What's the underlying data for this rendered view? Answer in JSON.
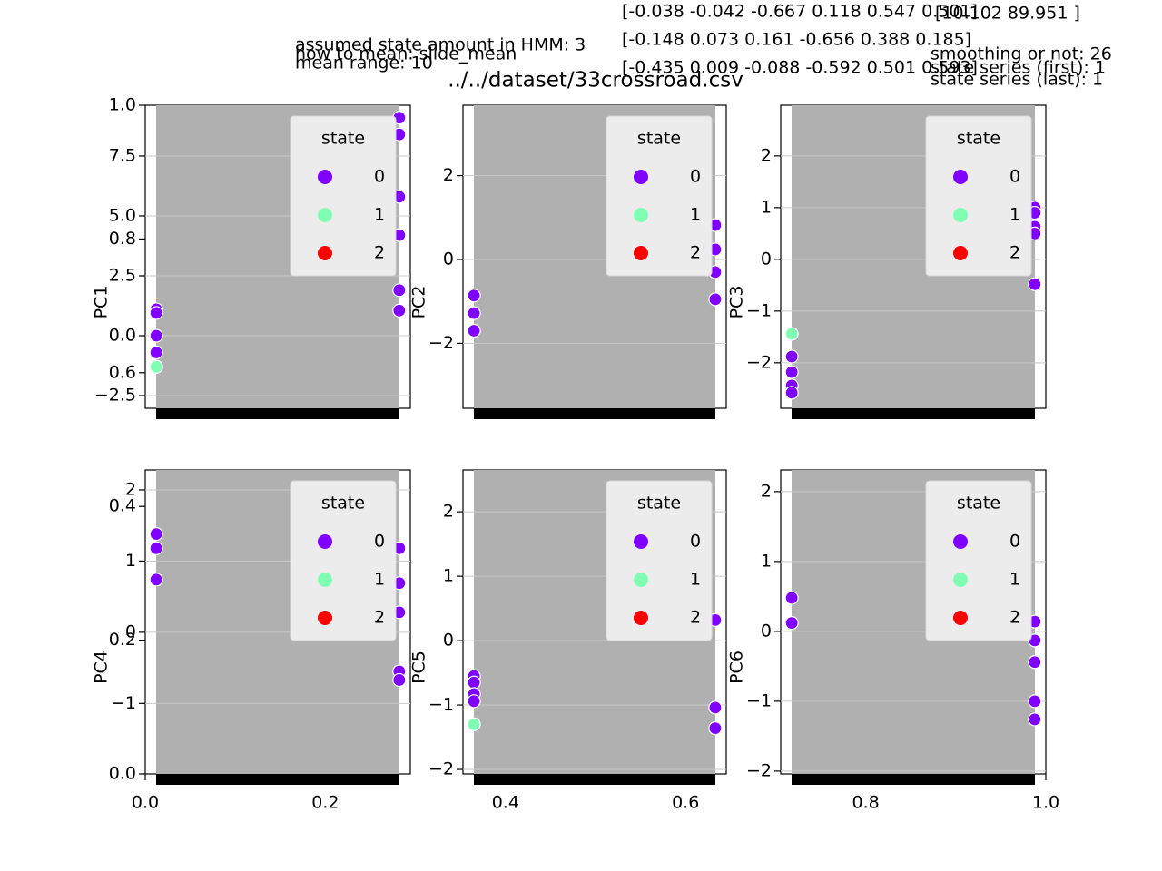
{
  "figure": {
    "texts": [
      "[-0.038 -0.042 -0.667  0.118  0.547  0.501]",
      "[-0.148  0.073  0.161 -0.656  0.388  0.185]",
      "[-0.435  0.009 -0.088 -0.592  0.501  0.593]",
      "[10.102 89.951  ]",
      "assumed state amount in HMM: 3",
      "how to mean: slide_mean",
      "mean range: 10",
      "smoothing or not: 26",
      "state series (first): 1",
      "state series (last): 1"
    ],
    "title": "../../dataset/33crossroad.csv"
  },
  "chart_data": [
    {
      "type": "axes",
      "xlim": [
        0,
        1
      ],
      "ylim": [
        0,
        1
      ],
      "xticks": [
        {
          "value": 0,
          "label": "0.0"
        },
        {
          "value": 0.2,
          "label": "0.2"
        },
        {
          "value": 0.4,
          "label": "0.4"
        },
        {
          "value": 0.6,
          "label": "0.6"
        },
        {
          "value": 0.8,
          "label": "0.8"
        },
        {
          "value": 1,
          "label": "1.0"
        }
      ],
      "yticks": [
        {
          "value": 0,
          "label": "0.0"
        },
        {
          "value": 0.2,
          "label": "0.2"
        },
        {
          "value": 0.4,
          "label": "0.4"
        },
        {
          "value": 0.6,
          "label": "0.6"
        },
        {
          "value": 0.8,
          "label": "0.8"
        },
        {
          "value": 1,
          "label": "1.0"
        }
      ]
    },
    {
      "type": "scatter",
      "ylabel": "PC1",
      "legend_title": "state",
      "xlim": [
        -1,
        23
      ],
      "ylim": [
        -3.03,
        9.62
      ],
      "yticks": [
        {
          "value": -2.5,
          "label": "−2.5"
        },
        {
          "value": 0,
          "label": "0.0"
        },
        {
          "value": 2.5,
          "label": "2.5"
        },
        {
          "value": 5,
          "label": "5.0"
        },
        {
          "value": 7.5,
          "label": "7.5"
        }
      ],
      "series": [
        {
          "name": "0",
          "color": "#8000ff",
          "x": [
            0,
            0,
            0,
            0,
            22,
            22,
            22,
            22,
            22,
            22
          ],
          "values": [
            1.1,
            0.95,
            0.0,
            -0.7,
            9.1,
            8.4,
            5.8,
            4.2,
            1.9,
            1.05
          ]
        },
        {
          "name": "1",
          "color": "#80ffb4",
          "x": [
            0
          ],
          "values": [
            -1.3
          ]
        },
        {
          "name": "2",
          "color": "#ff0000",
          "x": [],
          "values": []
        }
      ]
    },
    {
      "type": "scatter",
      "ylabel": "PC2",
      "legend_title": "state",
      "xlim": [
        -1,
        23
      ],
      "ylim": [
        -3.55,
        3.68
      ],
      "yticks": [
        {
          "value": -2,
          "label": "−2"
        },
        0,
        2
      ],
      "series": [
        {
          "name": "0",
          "color": "#8000ff",
          "x": [
            0,
            0,
            0,
            22,
            22,
            22,
            22
          ],
          "values": [
            -0.86,
            -1.28,
            -1.7,
            0.82,
            0.24,
            -0.3,
            -0.95
          ]
        },
        {
          "name": "1",
          "color": "#80ffb4",
          "x": [],
          "values": []
        },
        {
          "name": "2",
          "color": "#ff0000",
          "x": [],
          "values": []
        }
      ]
    },
    {
      "type": "scatter",
      "ylabel": "PC3",
      "legend_title": "state",
      "xlim": [
        -1,
        23
      ],
      "ylim": [
        -2.88,
        2.98
      ],
      "yticks": [
        {
          "value": -2,
          "label": "−2"
        },
        {
          "value": -1,
          "label": "−1"
        },
        0,
        1,
        2
      ],
      "series": [
        {
          "name": "0",
          "color": "#8000ff",
          "x": [
            0,
            0,
            0,
            0,
            22,
            22,
            22,
            22,
            22
          ],
          "values": [
            -1.88,
            -2.18,
            -2.44,
            -2.58,
            1.0,
            0.9,
            0.63,
            0.5,
            -0.48
          ]
        },
        {
          "name": "1",
          "color": "#80ffb4",
          "x": [
            0
          ],
          "values": [
            -1.44
          ]
        },
        {
          "name": "2",
          "color": "#ff0000",
          "x": [],
          "values": []
        }
      ]
    },
    {
      "type": "scatter",
      "ylabel": "PC4",
      "legend_title": "state",
      "xlim": [
        -1,
        23
      ],
      "ylim": [
        -1.99,
        2.28
      ],
      "yticks": [
        {
          "value": -1,
          "label": "−1"
        },
        0,
        1,
        2
      ],
      "series": [
        {
          "name": "0",
          "color": "#8000ff",
          "x": [
            0,
            0,
            0,
            22,
            22,
            22,
            22,
            22
          ],
          "values": [
            1.38,
            1.18,
            0.74,
            1.18,
            0.69,
            0.28,
            -0.55,
            -0.67
          ]
        },
        {
          "name": "1",
          "color": "#80ffb4",
          "x": [],
          "values": []
        },
        {
          "name": "2",
          "color": "#ff0000",
          "x": [],
          "values": []
        }
      ]
    },
    {
      "type": "scatter",
      "ylabel": "PC5",
      "legend_title": "state",
      "xlim": [
        -1,
        23
      ],
      "ylim": [
        -2.07,
        2.65
      ],
      "yticks": [
        {
          "value": -2,
          "label": "−2"
        },
        {
          "value": -1,
          "label": "−1"
        },
        0,
        1,
        2
      ],
      "series": [
        {
          "name": "0",
          "color": "#8000ff",
          "x": [
            0,
            0,
            0,
            0,
            22,
            22,
            22
          ],
          "values": [
            -0.55,
            -0.65,
            -0.83,
            -0.94,
            0.32,
            -1.04,
            -1.36
          ]
        },
        {
          "name": "1",
          "color": "#80ffb4",
          "x": [
            0
          ],
          "values": [
            -1.3
          ]
        },
        {
          "name": "2",
          "color": "#ff0000",
          "x": [],
          "values": []
        }
      ]
    },
    {
      "type": "scatter",
      "ylabel": "PC6",
      "legend_title": "state",
      "xlim": [
        -1,
        23
      ],
      "ylim": [
        -2.04,
        2.31
      ],
      "yticks": [
        {
          "value": -2,
          "label": "−2"
        },
        {
          "value": -1,
          "label": "−1"
        },
        0,
        1,
        2
      ],
      "series": [
        {
          "name": "0",
          "color": "#8000ff",
          "x": [
            0,
            0,
            22,
            22,
            22,
            22,
            22
          ],
          "values": [
            0.48,
            0.12,
            0.14,
            -0.13,
            -0.44,
            -1.0,
            -1.26
          ]
        },
        {
          "name": "1",
          "color": "#80ffb4",
          "x": [],
          "values": []
        },
        {
          "name": "2",
          "color": "#ff0000",
          "x": [],
          "values": []
        }
      ]
    }
  ]
}
